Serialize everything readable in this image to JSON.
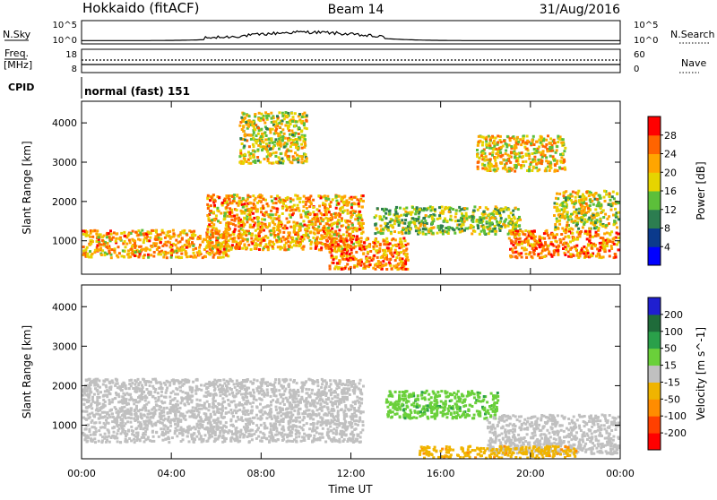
{
  "header": {
    "station": "Hokkaido (fitACF)",
    "beam": "Beam 14",
    "date": "31/Aug/2016"
  },
  "strips": {
    "nsky_label": "N.Sky",
    "nsearch_label": "N.Search",
    "nsky_ticks": [
      "10^5",
      "10^0"
    ],
    "nsearch_ticks": [
      "10^5",
      "10^0"
    ],
    "freq_label_line1": "Freq.",
    "freq_label_line2": "[MHz]",
    "freq_ticks": [
      "18",
      "8"
    ],
    "nave_label": "Nave",
    "nave_ticks": [
      "60",
      "0"
    ],
    "cpid_label": "CPID",
    "cpid_text": "normal (fast) 151"
  },
  "colors": {
    "power": [
      "#0000ff",
      "#0b3a8c",
      "#2c7d50",
      "#5cbf3a",
      "#e6d400",
      "#ffa500",
      "#ff6400",
      "#ff0000"
    ],
    "velocity": [
      "#1f1fd0",
      "#1f6b3a",
      "#2aa04a",
      "#6ad03a",
      "#c0c0c0",
      "#f0b400",
      "#ff8c00",
      "#ff4000",
      "#ff0000"
    ]
  },
  "chart_data": [
    {
      "type": "heatmap",
      "title": "",
      "xlabel": "",
      "ylabel": "Slant Range [km]",
      "xlim": [
        "00:00",
        "24:00"
      ],
      "ylim": [
        150,
        4550
      ],
      "x_ticks": [
        "00:00",
        "04:00",
        "08:00",
        "12:00",
        "16:00",
        "20:00",
        "00:00"
      ],
      "y_ticks": [
        1000,
        2000,
        3000,
        4000
      ],
      "colorbar": {
        "label": "Power [dB]",
        "ticks": [
          4,
          8,
          12,
          16,
          20,
          24,
          28
        ],
        "range": [
          0,
          32
        ]
      },
      "regions": [
        {
          "t0": 0.0,
          "t1": 6.5,
          "r0": 600,
          "r1": 1300,
          "value_mean": 22
        },
        {
          "t0": 5.5,
          "t1": 12.5,
          "r0": 800,
          "r1": 2200,
          "value_mean": 22
        },
        {
          "t0": 11.0,
          "t1": 14.5,
          "r0": 300,
          "r1": 1100,
          "value_mean": 24
        },
        {
          "t0": 13.0,
          "t1": 19.5,
          "r0": 1200,
          "r1": 1900,
          "value_mean": 15
        },
        {
          "t0": 19.0,
          "t1": 24.0,
          "r0": 600,
          "r1": 1300,
          "value_mean": 24
        },
        {
          "t0": 7.0,
          "t1": 10.0,
          "r0": 3000,
          "r1": 4300,
          "value_mean": 18
        },
        {
          "t0": 17.5,
          "t1": 21.5,
          "r0": 2800,
          "r1": 3700,
          "value_mean": 20
        },
        {
          "t0": 21.0,
          "t1": 24.0,
          "r0": 1300,
          "r1": 2300,
          "value_mean": 18
        }
      ]
    },
    {
      "type": "heatmap",
      "title": "",
      "xlabel": "Time UT",
      "ylabel": "Slant Range [km]",
      "xlim": [
        "00:00",
        "24:00"
      ],
      "ylim": [
        150,
        4550
      ],
      "x_ticks": [
        "00:00",
        "04:00",
        "08:00",
        "12:00",
        "16:00",
        "20:00",
        "00:00"
      ],
      "y_ticks": [
        1000,
        2000,
        3000,
        4000
      ],
      "colorbar": {
        "label": "Velocity [m s^-1]",
        "ticks": [
          200,
          100,
          50,
          15,
          -15,
          -50,
          -100,
          -200
        ],
        "range": [
          -250,
          250
        ]
      },
      "regions": [
        {
          "t0": 0.0,
          "t1": 12.5,
          "r0": 600,
          "r1": 2200,
          "value_mean": 0
        },
        {
          "t0": 13.5,
          "t1": 18.5,
          "r0": 1200,
          "r1": 1900,
          "value_mean": 60
        },
        {
          "t0": 18.0,
          "t1": 24.0,
          "r0": 300,
          "r1": 1300,
          "value_mean": 0
        },
        {
          "t0": 15.0,
          "t1": 22.0,
          "r0": 200,
          "r1": 500,
          "value_mean": -60
        }
      ]
    }
  ]
}
